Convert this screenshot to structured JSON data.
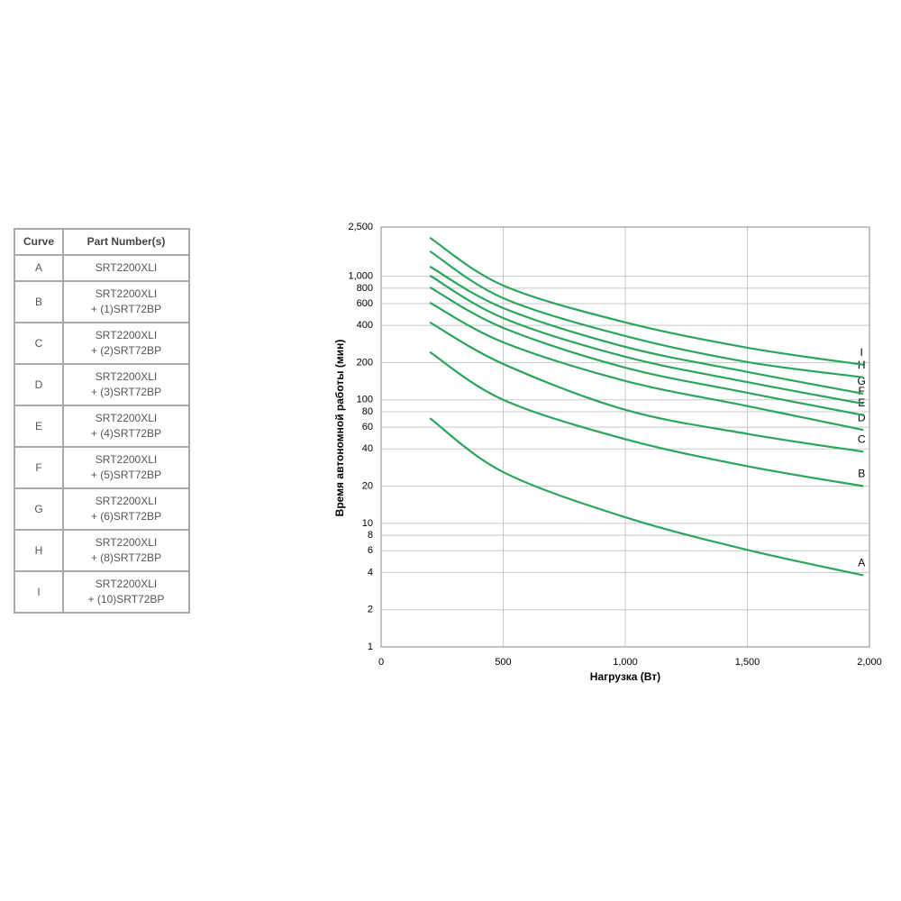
{
  "table": {
    "header": [
      "Curve",
      "Part Number(s)"
    ],
    "rows": [
      {
        "curve": "A",
        "parts": [
          "SRT2200XLI"
        ]
      },
      {
        "curve": "B",
        "parts": [
          "SRT2200XLI",
          "+ (1)SRT72BP"
        ]
      },
      {
        "curve": "C",
        "parts": [
          "SRT2200XLI",
          "+ (2)SRT72BP"
        ]
      },
      {
        "curve": "D",
        "parts": [
          "SRT2200XLI",
          "+ (3)SRT72BP"
        ]
      },
      {
        "curve": "E",
        "parts": [
          "SRT2200XLI",
          "+ (4)SRT72BP"
        ]
      },
      {
        "curve": "F",
        "parts": [
          "SRT2200XLI",
          "+ (5)SRT72BP"
        ]
      },
      {
        "curve": "G",
        "parts": [
          "SRT2200XLI",
          "+ (6)SRT72BP"
        ]
      },
      {
        "curve": "H",
        "parts": [
          "SRT2200XLI",
          "+ (8)SRT72BP"
        ]
      },
      {
        "curve": "I",
        "parts": [
          "SRT2200XLI",
          "+ (10)SRT72BP"
        ]
      }
    ]
  },
  "chart_data": {
    "type": "line",
    "x_label": "Нагрузка (Вт)",
    "y_label": "Время автономной работы (мин)",
    "xlim": [
      0,
      2000
    ],
    "xticks": [
      0,
      500,
      {
        "value": 1000,
        "label": "1,000"
      },
      {
        "value": 1500,
        "label": "1,500"
      },
      {
        "value": 2000,
        "label": "2,000"
      }
    ],
    "ylim": [
      1,
      2500
    ],
    "log_y": true,
    "grid": true,
    "yticks": [
      1,
      2,
      4,
      6,
      8,
      10,
      20,
      40,
      60,
      80,
      100,
      200,
      400,
      600,
      800,
      {
        "value": 1000,
        "label": "1,000"
      },
      {
        "value": 2500,
        "label": "2,500"
      }
    ],
    "x": [
      200,
      500,
      1000,
      1500,
      1975
    ],
    "series": [
      {
        "name": "A",
        "color": "#2aa55c",
        "values": [
          71,
          26,
          11.2,
          6.1,
          3.8
        ]
      },
      {
        "name": "B",
        "color": "#2aa55c",
        "values": [
          243,
          100,
          48,
          29,
          20
        ]
      },
      {
        "name": "C",
        "color": "#2aa55c",
        "values": [
          423,
          195,
          83,
          53,
          38
        ]
      },
      {
        "name": "D",
        "color": "#2aa55c",
        "values": [
          611,
          292,
          142,
          89,
          57
        ]
      },
      {
        "name": "E",
        "color": "#2aa55c",
        "values": [
          813,
          382,
          182,
          114,
          75
        ]
      },
      {
        "name": "F",
        "color": "#2aa55c",
        "values": [
          1012,
          459,
          223,
          139,
          93
        ]
      },
      {
        "name": "G",
        "color": "#2aa55c",
        "values": [
          1197,
          553,
          268,
          168,
          112
        ]
      },
      {
        "name": "H",
        "color": "#2aa55c",
        "values": [
          1592,
          665,
          328,
          202,
          152
        ]
      },
      {
        "name": "I",
        "color": "#2aa55c",
        "values": [
          2048,
          841,
          423,
          264,
          192
        ]
      }
    ]
  }
}
